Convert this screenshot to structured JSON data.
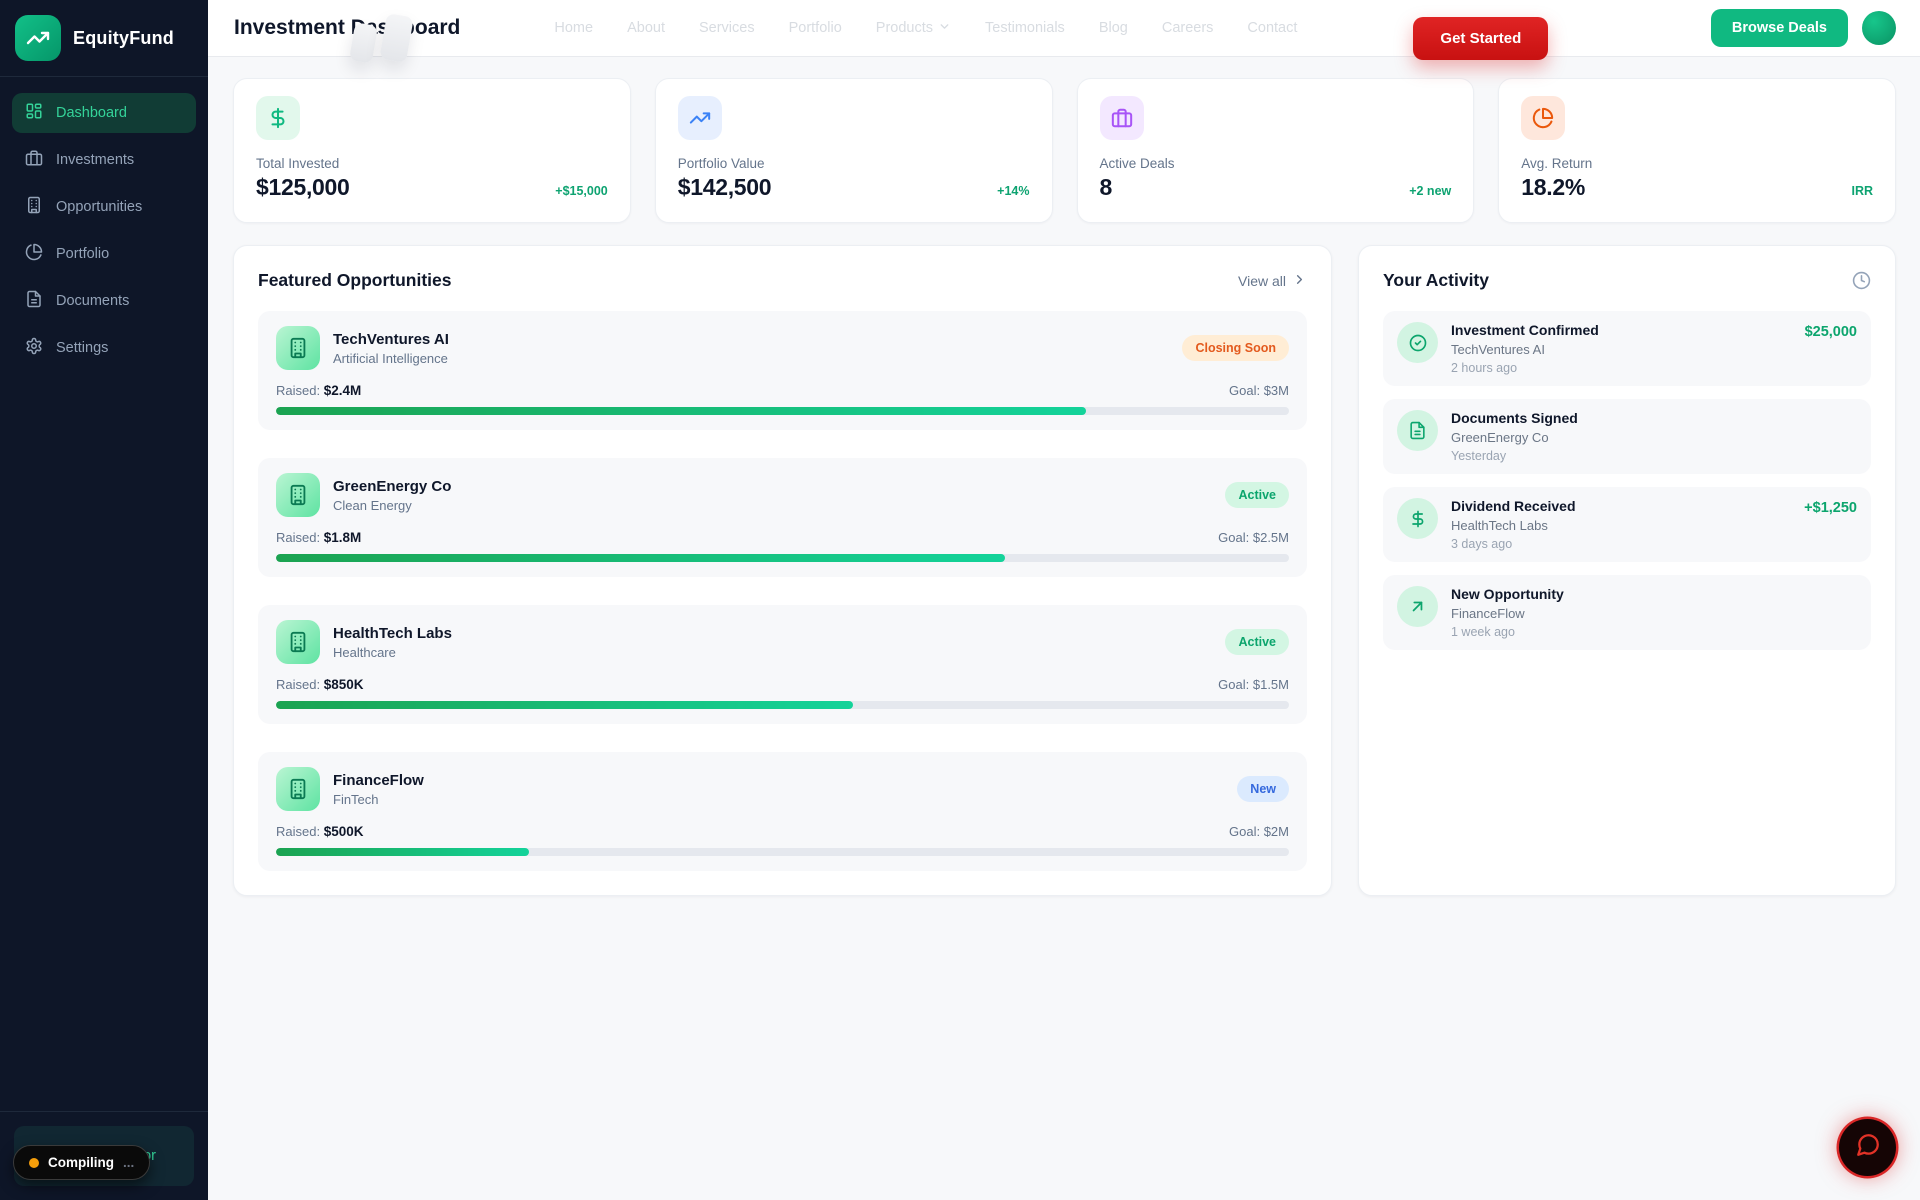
{
  "colors": {
    "sidebar_bg": "#0e1628",
    "accent_green": "#10b981",
    "active_nav_text": "#34d399",
    "cta_red": "#dc2626",
    "positive_green": "#0ea371",
    "badge_orange_text": "#e35a1e",
    "badge_blue_text": "#3569dd",
    "compiling_dot": "#f59e0b",
    "chat_ring_red": "#d92727"
  },
  "sidebar": {
    "brand": "EquityFund",
    "brand_icon": "trending-up-icon",
    "items": [
      {
        "label": "Dashboard",
        "icon": "dashboard-grid-icon",
        "active": true
      },
      {
        "label": "Investments",
        "icon": "briefcase-icon",
        "active": false
      },
      {
        "label": "Opportunities",
        "icon": "building-icon",
        "active": false
      },
      {
        "label": "Portfolio",
        "icon": "pie-chart-icon",
        "active": false
      },
      {
        "label": "Documents",
        "icon": "file-text-icon",
        "active": false
      },
      {
        "label": "Settings",
        "icon": "gear-icon",
        "active": false
      }
    ],
    "verified_badge": "Verified Investor"
  },
  "dev_overlay": {
    "status": "Compiling",
    "ellipsis": "..."
  },
  "header": {
    "title": "Investment Dashboard",
    "nav": [
      {
        "label": "Home"
      },
      {
        "label": "About"
      },
      {
        "label": "Services"
      },
      {
        "label": "Portfolio"
      },
      {
        "label": "Products",
        "has_dropdown": true
      },
      {
        "label": "Testimonials"
      },
      {
        "label": "Blog"
      },
      {
        "label": "Careers"
      },
      {
        "label": "Contact"
      }
    ],
    "get_started": "Get Started",
    "browse_deals": "Browse Deals"
  },
  "stats": [
    {
      "label": "Total Invested",
      "value": "$125,000",
      "delta": "+$15,000",
      "icon": "dollar-icon"
    },
    {
      "label": "Portfolio Value",
      "value": "$142,500",
      "delta": "+14%",
      "icon": "trending-up-icon"
    },
    {
      "label": "Active Deals",
      "value": "8",
      "delta": "+2 new",
      "icon": "briefcase-icon"
    },
    {
      "label": "Avg. Return",
      "value": "18.2%",
      "delta": "IRR",
      "icon": "pie-chart-icon"
    }
  ],
  "opportunities": {
    "title": "Featured Opportunities",
    "view_all": "View all",
    "raised_label": "Raised:",
    "cards": [
      {
        "name": "TechVentures AI",
        "category": "Artificial Intelligence",
        "badge": "Closing Soon",
        "raised": "$2.4M",
        "goal": "Goal: $3M",
        "progress_pct": 80,
        "icon": "building-icon"
      },
      {
        "name": "GreenEnergy Co",
        "category": "Clean Energy",
        "badge": "Active",
        "raised": "$1.8M",
        "goal": "Goal: $2.5M",
        "progress_pct": 72,
        "icon": "building-icon"
      },
      {
        "name": "HealthTech Labs",
        "category": "Healthcare",
        "badge": "Active",
        "raised": "$850K",
        "goal": "Goal: $1.5M",
        "progress_pct": 57,
        "icon": "building-icon"
      },
      {
        "name": "FinanceFlow",
        "category": "FinTech",
        "badge": "New",
        "raised": "$500K",
        "goal": "Goal: $2M",
        "progress_pct": 25,
        "icon": "building-icon"
      }
    ]
  },
  "activity": {
    "title": "Your Activity",
    "header_icon": "clock-icon",
    "items": [
      {
        "title": "Investment Confirmed",
        "company": "TechVentures AI",
        "time": "2 hours ago",
        "amount": "$25,000",
        "icon": "check-circle-icon"
      },
      {
        "title": "Documents Signed",
        "company": "GreenEnergy Co",
        "time": "Yesterday",
        "amount": "",
        "icon": "file-text-icon"
      },
      {
        "title": "Dividend Received",
        "company": "HealthTech Labs",
        "time": "3 days ago",
        "amount": "+$1,250",
        "icon": "dollar-icon"
      },
      {
        "title": "New Opportunity",
        "company": "FinanceFlow",
        "time": "1 week ago",
        "amount": "",
        "icon": "arrow-up-right-icon"
      }
    ]
  },
  "chat": {
    "icon": "message-bubble-icon"
  }
}
